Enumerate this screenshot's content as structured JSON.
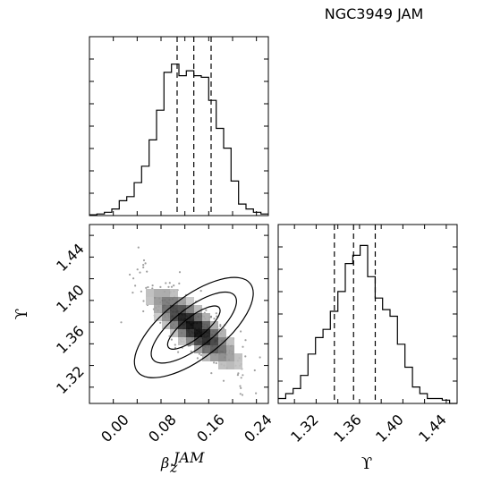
{
  "chart_data": [
    {
      "panel": "marginal-beta",
      "type": "step-histogram",
      "title": "NGC3949 JAM",
      "xlim": [
        -0.04,
        0.26
      ],
      "ylim": [
        0,
        1
      ],
      "bin_edges": [
        -0.04,
        -0.0275,
        -0.015,
        -0.0025,
        0.01,
        0.0225,
        0.035,
        0.0475,
        0.06,
        0.0725,
        0.085,
        0.0975,
        0.11,
        0.1225,
        0.135,
        0.1475,
        0.16,
        0.1725,
        0.185,
        0.1975,
        0.21,
        0.2225,
        0.235,
        0.2475,
        0.26
      ],
      "counts": [
        0.005,
        0.01,
        0.02,
        0.04,
        0.09,
        0.115,
        0.2,
        0.3,
        0.46,
        0.64,
        0.87,
        0.92,
        0.85,
        0.88,
        0.85,
        0.84,
        0.7,
        0.53,
        0.41,
        0.21,
        0.07,
        0.04,
        0.02,
        0.01
      ],
      "quantiles": [
        0.107,
        0.135,
        0.164
      ]
    },
    {
      "panel": "joint",
      "type": "scatter-histogram2d-contour",
      "xlabel": "β_z^JAM",
      "ylabel": "ϒ",
      "xlim": [
        -0.04,
        0.26
      ],
      "ylim": [
        1.305,
        1.47
      ],
      "xticks": [
        "0.00",
        "0.08",
        "0.16",
        "0.24"
      ],
      "yticks": [
        "1.32",
        "1.36",
        "1.40",
        "1.44"
      ]
    },
    {
      "panel": "marginal-upsilon",
      "type": "step-histogram",
      "xlabel": "ϒ",
      "xlim": [
        1.305,
        1.47
      ],
      "ylim": [
        0,
        1
      ],
      "bin_edges": [
        1.305,
        1.3119,
        1.3188,
        1.3256,
        1.3325,
        1.3394,
        1.3463,
        1.3531,
        1.36,
        1.3669,
        1.3738,
        1.3806,
        1.3875,
        1.3944,
        1.4013,
        1.4081,
        1.415,
        1.4219,
        1.4288,
        1.4356,
        1.4425,
        1.4494,
        1.4563,
        1.4631,
        1.47
      ],
      "counts": [
        0.03,
        0.06,
        0.09,
        0.17,
        0.3,
        0.4,
        0.45,
        0.56,
        0.68,
        0.85,
        0.9,
        0.96,
        0.77,
        0.64,
        0.57,
        0.53,
        0.36,
        0.22,
        0.1,
        0.06,
        0.03,
        0.03,
        0.02,
        0.0
      ],
      "quantiles": [
        1.3568,
        1.3745,
        1.3945
      ],
      "xticks": [
        "1.32",
        "1.36",
        "1.40",
        "1.44"
      ]
    }
  ]
}
